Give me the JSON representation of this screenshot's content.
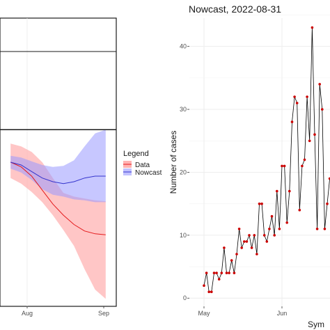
{
  "chart_data": [
    {
      "type": "area",
      "x_ticks": [
        "Aug",
        "Sep"
      ],
      "legend": {
        "title": "Legend",
        "position": "right",
        "entries": [
          {
            "label": "Data",
            "color": "#e41a1c"
          },
          {
            "label": "Nowcast",
            "color": "#3333cc"
          }
        ]
      },
      "x_days": [
        0,
        7,
        14,
        21,
        28,
        35,
        42,
        49,
        56,
        63
      ],
      "series": [
        {
          "name": "Data",
          "color": "#e41a1c",
          "fill": "#ffb3b3",
          "mean": [
            0.95,
            0.9,
            0.8,
            0.65,
            0.5,
            0.38,
            0.28,
            0.21,
            0.18,
            0.17
          ],
          "upper": [
            1.15,
            1.12,
            1.06,
            0.95,
            0.78,
            0.62,
            0.58,
            0.56,
            0.54,
            0.53
          ],
          "lower": [
            0.78,
            0.72,
            0.63,
            0.52,
            0.38,
            0.22,
            0.05,
            -0.2,
            -0.42,
            -0.52
          ]
        },
        {
          "name": "Nowcast",
          "color": "#3333cc",
          "fill": "#9999ff",
          "mean": [
            0.95,
            0.92,
            0.85,
            0.78,
            0.74,
            0.72,
            0.74,
            0.78,
            0.8,
            0.8
          ],
          "upper": [
            1.02,
            1.0,
            0.96,
            0.92,
            0.9,
            0.91,
            0.97,
            1.12,
            1.26,
            1.3
          ],
          "lower": [
            0.88,
            0.84,
            0.76,
            0.66,
            0.6,
            0.58,
            0.55,
            0.54,
            0.52,
            0.52
          ]
        }
      ],
      "reference_line": 1.3
    },
    {
      "type": "line",
      "title": "Nowcast, 2022-08-31",
      "ylabel": "Number of cases",
      "xlabel": "Sym",
      "ylim": [
        -1.3,
        44.5
      ],
      "y_ticks": [
        0,
        10,
        20,
        30,
        40
      ],
      "x_ticks": [
        {
          "label": "May",
          "day": 0
        },
        {
          "label": "Jun",
          "day": 31
        }
      ],
      "grid": true,
      "x_day": [
        0,
        1,
        2,
        3,
        4,
        5,
        6,
        7,
        8,
        9,
        10,
        11,
        12,
        13,
        14,
        15,
        16,
        17,
        18,
        19,
        20,
        21,
        22,
        23,
        24,
        25,
        26,
        27,
        28,
        29,
        30,
        31,
        32,
        33,
        34,
        35,
        36,
        37,
        38,
        39,
        40,
        41,
        42,
        43,
        44,
        45,
        46,
        47,
        48,
        49,
        50,
        51
      ],
      "values": [
        2,
        4,
        1,
        1,
        4,
        4,
        3,
        4,
        8,
        4,
        4,
        6,
        4,
        7,
        11,
        8,
        9,
        9,
        10,
        8,
        10,
        7,
        15,
        15,
        10,
        9,
        11,
        13,
        10,
        17,
        11,
        21,
        21,
        12,
        17,
        28,
        32,
        31,
        14,
        21,
        22,
        32,
        25,
        43,
        26,
        11,
        34,
        30,
        11,
        15,
        19,
        20
      ],
      "point_color": "#cc0000",
      "line_color": "#000000"
    }
  ]
}
